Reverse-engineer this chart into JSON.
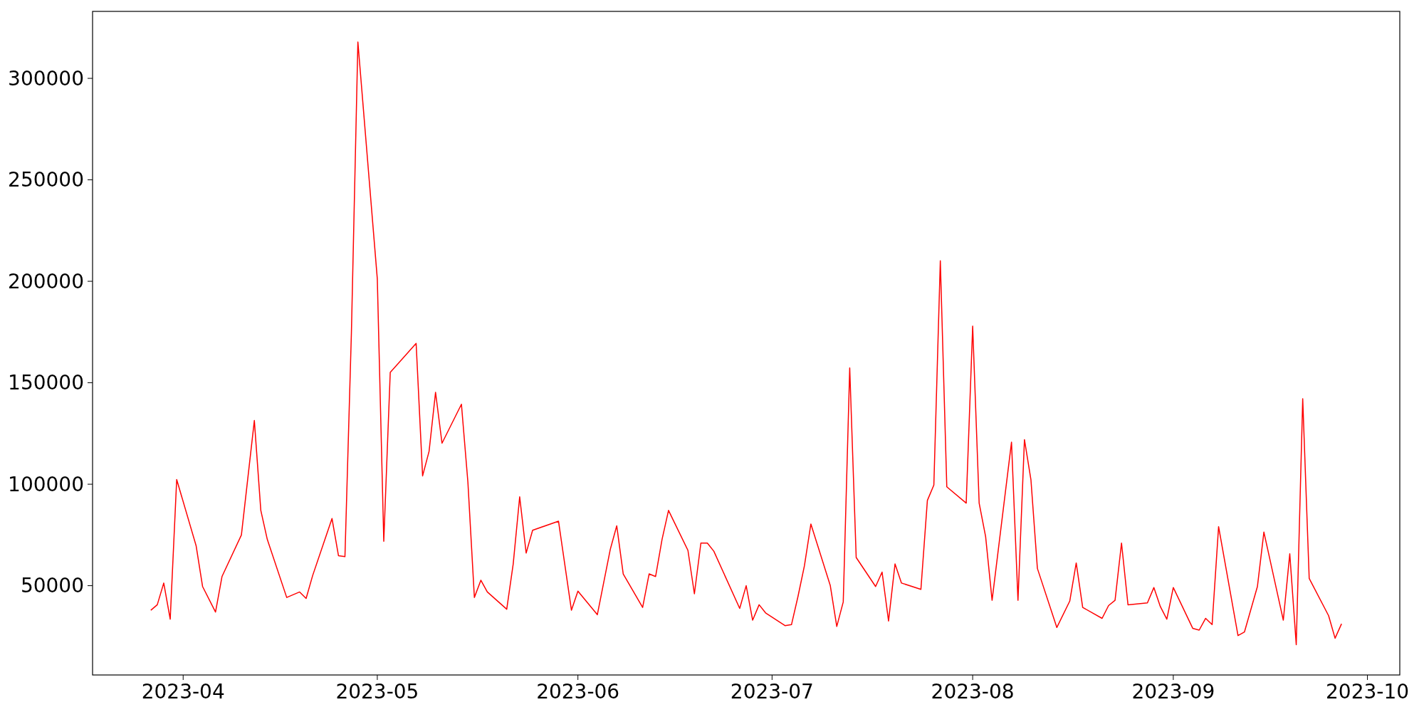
{
  "chart_data": {
    "type": "line",
    "x": [
      "2023-03-27",
      "2023-03-28",
      "2023-03-29",
      "2023-03-30",
      "2023-03-31",
      "2023-04-03",
      "2023-04-04",
      "2023-04-06",
      "2023-04-07",
      "2023-04-10",
      "2023-04-12",
      "2023-04-13",
      "2023-04-14",
      "2023-04-17",
      "2023-04-19",
      "2023-04-20",
      "2023-04-21",
      "2023-04-24",
      "2023-04-25",
      "2023-04-26",
      "2023-04-27",
      "2023-04-28",
      "2023-05-01",
      "2023-05-02",
      "2023-05-03",
      "2023-05-07",
      "2023-05-08",
      "2023-05-09",
      "2023-05-10",
      "2023-05-11",
      "2023-05-14",
      "2023-05-15",
      "2023-05-16",
      "2023-05-17",
      "2023-05-18",
      "2023-05-21",
      "2023-05-22",
      "2023-05-23",
      "2023-05-24",
      "2023-05-25",
      "2023-05-29",
      "2023-05-31",
      "2023-06-01",
      "2023-06-04",
      "2023-06-06",
      "2023-06-07",
      "2023-06-08",
      "2023-06-11",
      "2023-06-12",
      "2023-06-13",
      "2023-06-14",
      "2023-06-15",
      "2023-06-18",
      "2023-06-19",
      "2023-06-20",
      "2023-06-21",
      "2023-06-22",
      "2023-06-26",
      "2023-06-27",
      "2023-06-28",
      "2023-06-29",
      "2023-06-30",
      "2023-07-03",
      "2023-07-04",
      "2023-07-05",
      "2023-07-06",
      "2023-07-07",
      "2023-07-10",
      "2023-07-11",
      "2023-07-12",
      "2023-07-13",
      "2023-07-14",
      "2023-07-17",
      "2023-07-18",
      "2023-07-19",
      "2023-07-20",
      "2023-07-21",
      "2023-07-24",
      "2023-07-25",
      "2023-07-26",
      "2023-07-27",
      "2023-07-28",
      "2023-07-31",
      "2023-08-01",
      "2023-08-02",
      "2023-08-03",
      "2023-08-04",
      "2023-08-07",
      "2023-08-08",
      "2023-08-09",
      "2023-08-10",
      "2023-08-11",
      "2023-08-14",
      "2023-08-16",
      "2023-08-17",
      "2023-08-18",
      "2023-08-21",
      "2023-08-22",
      "2023-08-23",
      "2023-08-24",
      "2023-08-25",
      "2023-08-28",
      "2023-08-29",
      "2023-08-30",
      "2023-08-31",
      "2023-09-01",
      "2023-09-04",
      "2023-09-05",
      "2023-09-06",
      "2023-09-07",
      "2023-09-08",
      "2023-09-11",
      "2023-09-12",
      "2023-09-14",
      "2023-09-15",
      "2023-09-18",
      "2023-09-19",
      "2023-09-20",
      "2023-09-21",
      "2023-09-22",
      "2023-09-25",
      "2023-09-26",
      "2023-09-27"
    ],
    "series": [
      {
        "color": "#ff0000",
        "values": [
          37900,
          40600,
          51300,
          33500,
          102300,
          69700,
          49600,
          37000,
          54500,
          75000,
          131400,
          87100,
          72800,
          44200,
          46900,
          43700,
          54900,
          83100,
          64800,
          64300,
          174800,
          317900,
          201200,
          71900,
          155100,
          169400,
          104100,
          116200,
          145300,
          120200,
          139400,
          101000,
          44200,
          52700,
          46900,
          38400,
          60700,
          93800,
          66100,
          77300,
          81800,
          37900,
          47300,
          35700,
          67900,
          79500,
          55800,
          39300,
          55800,
          54500,
          72800,
          87100,
          67400,
          46000,
          71000,
          71000,
          67000,
          38800,
          50000,
          33000,
          40600,
          36600,
          30300,
          30800,
          44600,
          59800,
          80400,
          50000,
          29900,
          42000,
          157300,
          63900,
          49600,
          56700,
          32600,
          60700,
          51300,
          48200,
          92000,
          99600,
          210100,
          98700,
          90700,
          177900,
          90700,
          74200,
          42800,
          120700,
          42800,
          122000,
          102300,
          58500,
          29400,
          42400,
          61200,
          39300,
          33900,
          40200,
          42800,
          71000,
          40600,
          41500,
          49100,
          39700,
          33500,
          49100,
          29000,
          28100,
          33900,
          30800,
          79100,
          25400,
          27200,
          49600,
          76400,
          33000,
          65700,
          20900,
          142100,
          53600,
          35200,
          24100,
          31200
        ]
      }
    ],
    "xlim": [
      "2023-03-18",
      "2023-10-06"
    ],
    "xticks": [
      "2023-04",
      "2023-05",
      "2023-06",
      "2023-07",
      "2023-08",
      "2023-09",
      "2023-10"
    ],
    "ylim": [
      6000,
      333000
    ],
    "yticks": [
      50000,
      100000,
      150000,
      200000,
      250000,
      300000
    ],
    "grid": false,
    "marker": "none",
    "line_style": "solid"
  }
}
